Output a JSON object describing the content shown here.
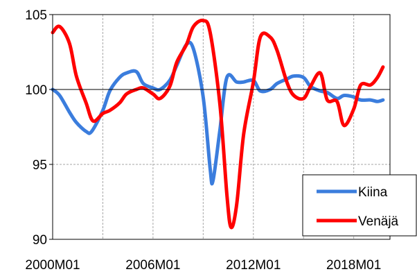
{
  "chart_data": {
    "type": "line",
    "title": "",
    "xlabel": "",
    "ylabel": "",
    "xlim": [
      "2000M01",
      "2020M03"
    ],
    "ylim": [
      90,
      105
    ],
    "yticks": [
      90,
      95,
      100,
      105
    ],
    "xtick_labels": [
      "2000M01",
      "2006M01",
      "2012M01",
      "2018M01"
    ],
    "grid": true,
    "legend_position": "bottom-right",
    "series": [
      {
        "name": "Kiina",
        "color": "#3b7ddd",
        "points": [
          [
            "2000M01",
            100.0
          ],
          [
            "2000M06",
            99.6
          ],
          [
            "2001M01",
            98.5
          ],
          [
            "2001M06",
            97.8
          ],
          [
            "2002M01",
            97.2
          ],
          [
            "2002M05",
            97.2
          ],
          [
            "2003M01",
            98.6
          ],
          [
            "2003M06",
            99.9
          ],
          [
            "2004M01",
            100.8
          ],
          [
            "2004M06",
            101.1
          ],
          [
            "2005M01",
            101.2
          ],
          [
            "2005M06",
            100.4
          ],
          [
            "2006M01",
            100.1
          ],
          [
            "2006M06",
            100.0
          ],
          [
            "2007M01",
            100.6
          ],
          [
            "2007M06",
            101.6
          ],
          [
            "2008M01",
            103.0
          ],
          [
            "2008M06",
            102.7
          ],
          [
            "2009M01",
            99.5
          ],
          [
            "2009M06",
            94.7
          ],
          [
            "2009M08",
            93.9
          ],
          [
            "2010M01",
            97.3
          ],
          [
            "2010M06",
            100.8
          ],
          [
            "2011M01",
            100.5
          ],
          [
            "2011M06",
            100.5
          ],
          [
            "2012M01",
            100.6
          ],
          [
            "2012M06",
            99.9
          ],
          [
            "2013M01",
            100.0
          ],
          [
            "2013M06",
            100.4
          ],
          [
            "2014M01",
            100.7
          ],
          [
            "2014M06",
            100.9
          ],
          [
            "2015M01",
            100.8
          ],
          [
            "2015M06",
            100.2
          ],
          [
            "2016M01",
            99.9
          ],
          [
            "2016M06",
            99.8
          ],
          [
            "2017M01",
            99.4
          ],
          [
            "2017M06",
            99.6
          ],
          [
            "2018M01",
            99.5
          ],
          [
            "2018M06",
            99.3
          ],
          [
            "2019M01",
            99.3
          ],
          [
            "2019M06",
            99.2
          ],
          [
            "2019M10",
            99.3
          ]
        ]
      },
      {
        "name": "Venäjä",
        "color": "#ff0000",
        "points": [
          [
            "2000M01",
            103.8
          ],
          [
            "2000M06",
            104.2
          ],
          [
            "2001M01",
            103.1
          ],
          [
            "2001M06",
            100.9
          ],
          [
            "2002M01",
            99.1
          ],
          [
            "2002M06",
            97.9
          ],
          [
            "2003M01",
            98.4
          ],
          [
            "2003M06",
            98.6
          ],
          [
            "2004M01",
            99.1
          ],
          [
            "2004M06",
            99.7
          ],
          [
            "2005M01",
            100.0
          ],
          [
            "2005M06",
            100.1
          ],
          [
            "2006M01",
            99.7
          ],
          [
            "2006M06",
            99.4
          ],
          [
            "2007M01",
            100.2
          ],
          [
            "2007M06",
            101.8
          ],
          [
            "2008M01",
            103.0
          ],
          [
            "2008M06",
            104.2
          ],
          [
            "2009M01",
            104.6
          ],
          [
            "2009M06",
            103.8
          ],
          [
            "2010M01",
            99.0
          ],
          [
            "2010M06",
            93.0
          ],
          [
            "2010M09",
            90.8
          ],
          [
            "2011M01",
            92.3
          ],
          [
            "2011M06",
            97.0
          ],
          [
            "2012M01",
            100.5
          ],
          [
            "2012M06",
            103.5
          ],
          [
            "2013M01",
            103.5
          ],
          [
            "2013M06",
            102.6
          ],
          [
            "2014M01",
            100.5
          ],
          [
            "2014M06",
            99.6
          ],
          [
            "2015M01",
            99.4
          ],
          [
            "2015M06",
            100.2
          ],
          [
            "2016M01",
            101.1
          ],
          [
            "2016M06",
            99.3
          ],
          [
            "2017M01",
            99.2
          ],
          [
            "2017M06",
            97.6
          ],
          [
            "2018M01",
            98.7
          ],
          [
            "2018M06",
            100.3
          ],
          [
            "2019M01",
            100.3
          ],
          [
            "2019M06",
            100.8
          ],
          [
            "2019M10",
            101.5
          ]
        ]
      }
    ]
  }
}
